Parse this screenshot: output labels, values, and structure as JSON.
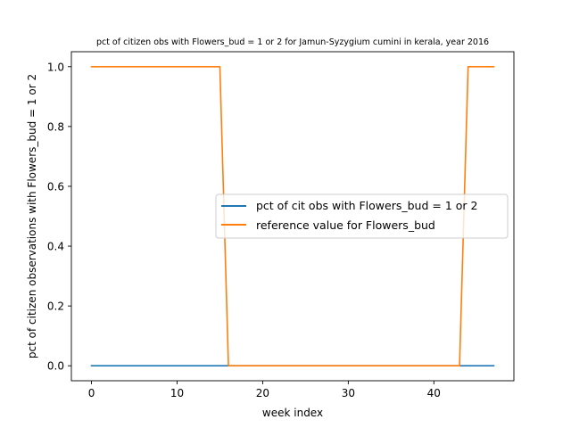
{
  "chart_data": {
    "type": "line",
    "title": "pct of citizen obs with Flowers_bud = 1 or 2 for Jamun-Syzygium cumini in kerala, year 2016",
    "xlabel": "week index",
    "ylabel": "pct of citizen observations with Flowers_bud = 1 or 2",
    "xlim": [
      -2.35,
      49.35
    ],
    "ylim": [
      -0.05,
      1.05
    ],
    "xticks": [
      0,
      10,
      20,
      30,
      40
    ],
    "xtick_labels": [
      "0",
      "10",
      "20",
      "30",
      "40"
    ],
    "yticks": [
      0.0,
      0.2,
      0.4,
      0.6,
      0.8,
      1.0
    ],
    "ytick_labels": [
      "0.0",
      "0.2",
      "0.4",
      "0.6",
      "0.8",
      "1.0"
    ],
    "grid": false,
    "legend_position": "center-right",
    "series": [
      {
        "name": "pct of cit obs with Flowers_bud = 1 or 2",
        "color": "#1f77b4",
        "x": [
          0,
          47
        ],
        "y": [
          0,
          0
        ]
      },
      {
        "name": "reference value for Flowers_bud",
        "color": "#ff7f0e",
        "x": [
          0,
          15,
          16,
          43,
          44,
          47
        ],
        "y": [
          1,
          1,
          0,
          0,
          1,
          1
        ]
      }
    ]
  }
}
